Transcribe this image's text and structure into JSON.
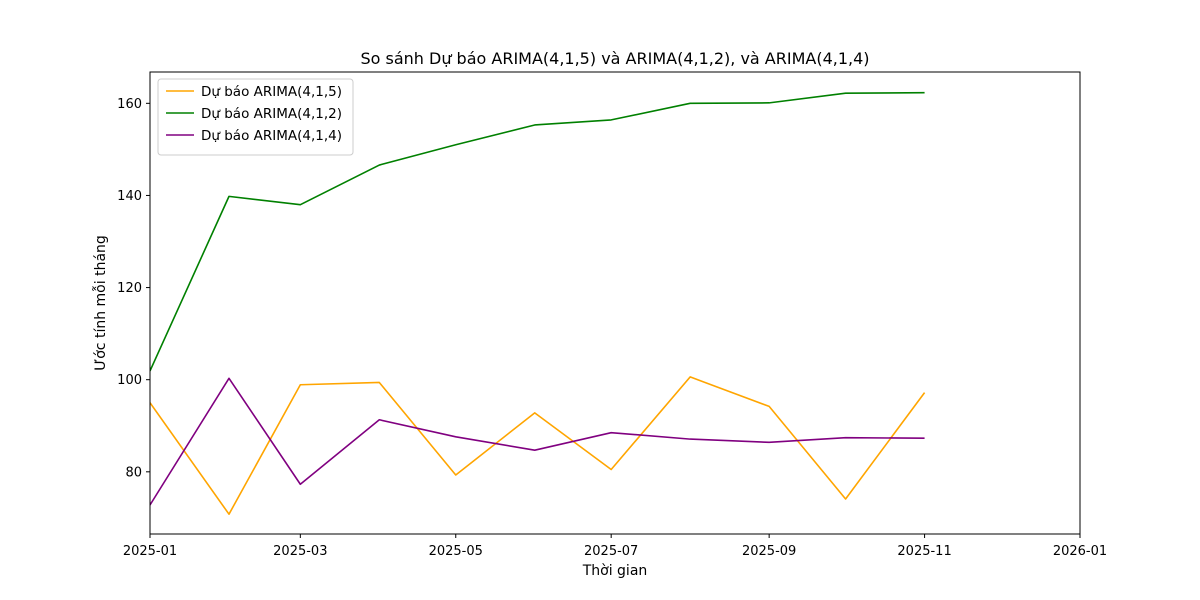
{
  "chart_data": {
    "type": "line",
    "title": "So sánh Dự báo ARIMA(4,1,5) và ARIMA(4,1,2), và ARIMA(4,1,4)",
    "xlabel": "Thời gian",
    "ylabel": "Ước tính mỗi tháng",
    "x": [
      "2025-01-01",
      "2025-02-01",
      "2025-03-01",
      "2025-04-01",
      "2025-05-01",
      "2025-06-01",
      "2025-07-01",
      "2025-08-01",
      "2025-09-01",
      "2025-10-01",
      "2025-11-01"
    ],
    "xlim": [
      "2025-01-01",
      "2026-01-01"
    ],
    "ylim": [
      66.5,
      166.8
    ],
    "x_ticks": [
      "2025-01",
      "2025-03",
      "2025-05",
      "2025-07",
      "2025-09",
      "2025-11",
      "2026-01"
    ],
    "y_ticks": [
      80,
      100,
      120,
      140,
      160
    ],
    "grid": false,
    "legend_position": "top-left",
    "series": [
      {
        "name": "Dự báo ARIMA(4,1,5)",
        "color": "#ffa500",
        "values": [
          95.0,
          70.8,
          98.9,
          99.4,
          79.3,
          92.8,
          80.5,
          100.6,
          94.2,
          74.1,
          97.2
        ]
      },
      {
        "name": "Dự báo ARIMA(4,1,2)",
        "color": "#008000",
        "values": [
          101.9,
          139.8,
          138.0,
          146.6,
          151.0,
          155.3,
          156.4,
          160.0,
          160.1,
          162.2,
          162.3
        ]
      },
      {
        "name": "Dự báo ARIMA(4,1,4)",
        "color": "#800080",
        "values": [
          72.8,
          100.3,
          77.3,
          91.3,
          87.6,
          84.7,
          88.5,
          87.1,
          86.4,
          87.4,
          87.3
        ]
      }
    ]
  }
}
